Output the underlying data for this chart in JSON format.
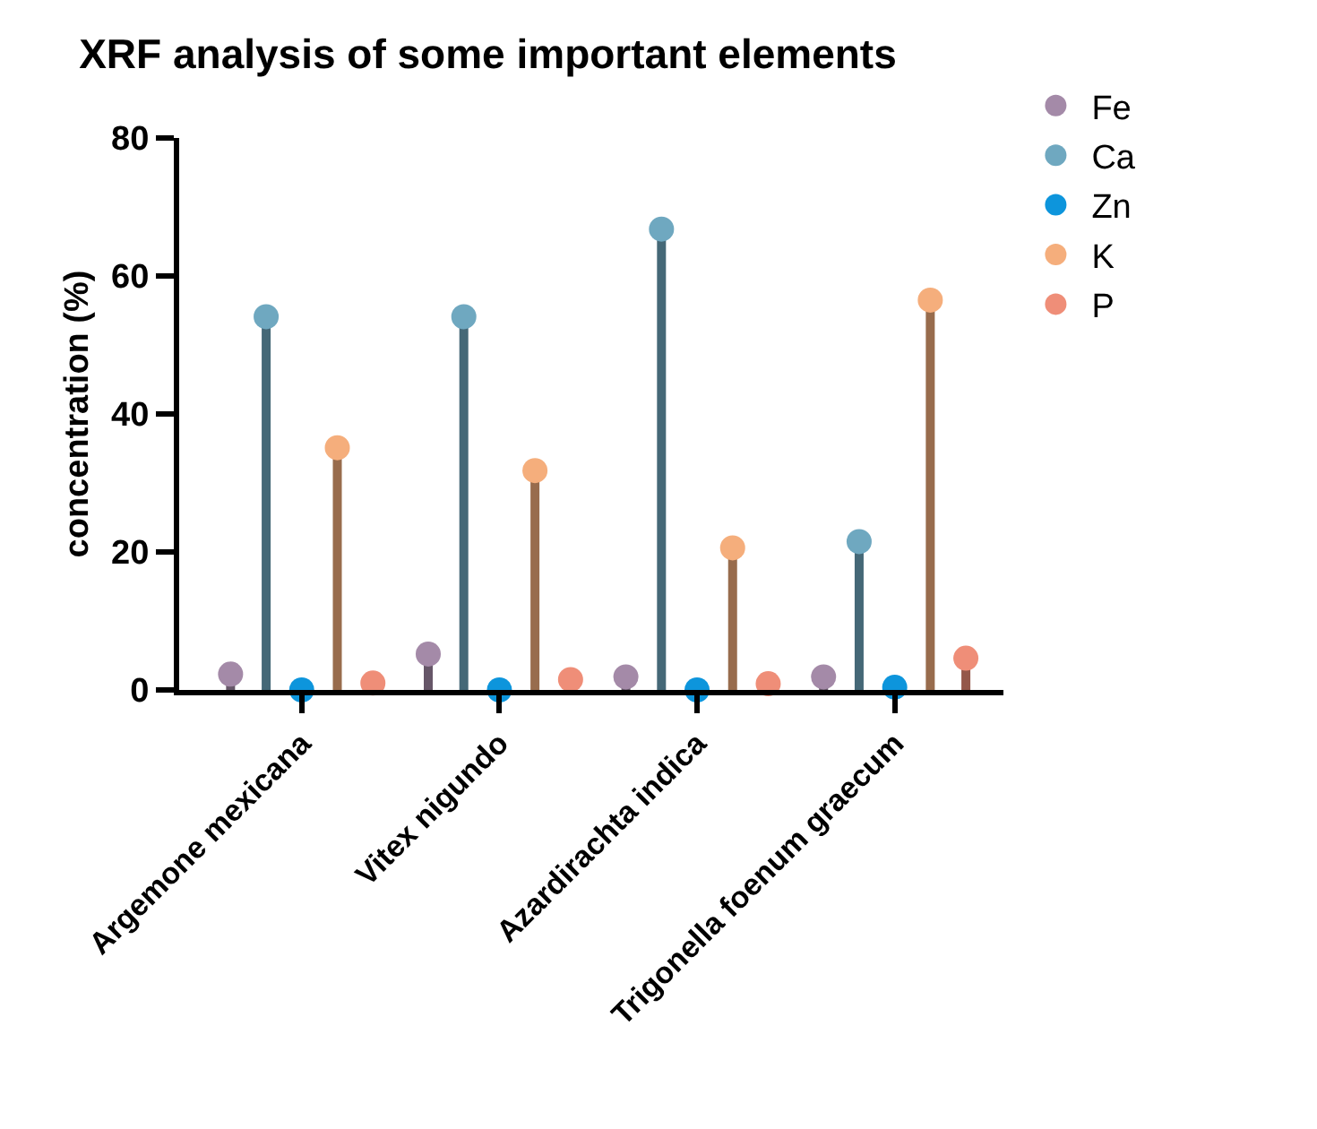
{
  "chart_data": {
    "type": "lollipop",
    "title": "XRF analysis of some important elements",
    "ylabel": "concentration (%)",
    "categories": [
      "Argemone mexicana",
      "Vitex nigundo",
      "Azardirachta indica",
      "Trigonella foenum graecum"
    ],
    "series": [
      {
        "name": "Fe",
        "color": "#a48aa8",
        "values": [
          2.3,
          5.2,
          1.9,
          1.9
        ]
      },
      {
        "name": "Ca",
        "color": "#6fa8c0",
        "values": [
          54.1,
          54.1,
          66.8,
          21.5
        ]
      },
      {
        "name": "Zn",
        "color": "#0d95dc",
        "values": [
          0,
          0,
          0,
          0.4
        ]
      },
      {
        "name": "K",
        "color": "#f5ae7c",
        "values": [
          35.1,
          31.8,
          20.6,
          56.5
        ]
      },
      {
        "name": "P",
        "color": "#ef8e78",
        "values": [
          1.0,
          1.5,
          0.9,
          4.6
        ]
      }
    ],
    "ylim": [
      0,
      80
    ],
    "yticks": [
      0,
      20,
      40,
      60,
      80
    ],
    "grid": false,
    "legend": "top right",
    "marker": "circle"
  }
}
